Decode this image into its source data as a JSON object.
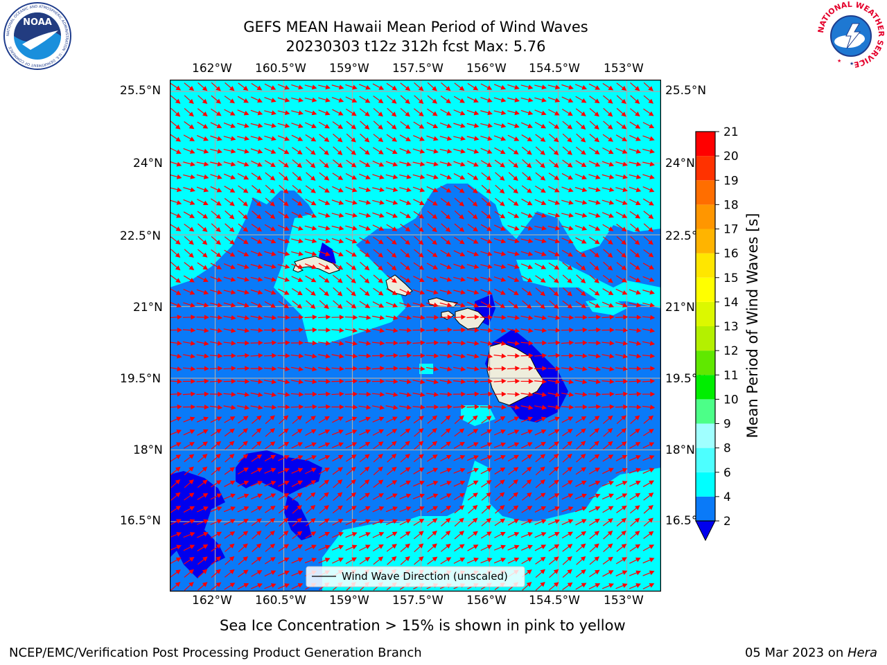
{
  "header": {
    "title_line1": "GEFS MEAN Hawaii Mean Period of Wind Waves",
    "title_line2": "20230303 t12z 312h fcst   Max: 5.76"
  },
  "logos": {
    "noaa_text": "NOAA",
    "noaa_ring_text": "NATIONAL OCEANIC AND ATMOSPHERIC ADMINISTRATION · U.S. DEPARTMENT OF COMMERCE",
    "nws_ring_text": "NATIONAL WEATHER SERVICE"
  },
  "map": {
    "lon_labels": [
      "162°W",
      "160.5°W",
      "159°W",
      "157.5°W",
      "156°W",
      "154.5°W",
      "153°W"
    ],
    "lat_labels": [
      "25.5°N",
      "24°N",
      "22.5°N",
      "21°N",
      "19.5°N",
      "18°N",
      "16.5°N"
    ],
    "lon_values": [
      -162,
      -160.5,
      -159,
      -157.5,
      -156,
      -154.5,
      -153
    ],
    "lat_values": [
      25.5,
      24,
      22.5,
      21,
      19.5,
      18,
      16.5
    ],
    "legend_label": "Wind Wave Direction (unscaled)",
    "colors": {
      "below_2": "#0000ee",
      "band_2_4": "#0a7af8",
      "band_4_6": "#00ffff",
      "land": "#efeddc",
      "arrow": "#ff0000",
      "grid": "#aaaaaa"
    }
  },
  "colorbar": {
    "label": "Mean Period of Wind Waves [s]",
    "ticks": [
      "2",
      "4",
      "6",
      "8",
      "9",
      "10",
      "11",
      "12",
      "13",
      "14",
      "15",
      "16",
      "17",
      "18",
      "19",
      "20",
      "21"
    ],
    "colors": [
      "#0a7af8",
      "#00ffff",
      "#4dffff",
      "#a0ffff",
      "#4cff88",
      "#00ee00",
      "#60e800",
      "#b4f000",
      "#dcf800",
      "#ffff00",
      "#ffe600",
      "#ffb400",
      "#ff9600",
      "#ff6e00",
      "#ff3200",
      "#ff0000"
    ],
    "extend_color": "#0000ee"
  },
  "notes": {
    "sea_ice": "Sea Ice Concentration > 15% is shown in pink to yellow"
  },
  "footer": {
    "left": "NCEP/EMC/Verification Post Processing Product Generation Branch",
    "date": "05 Mar 2023 on ",
    "machine": "Hera"
  }
}
